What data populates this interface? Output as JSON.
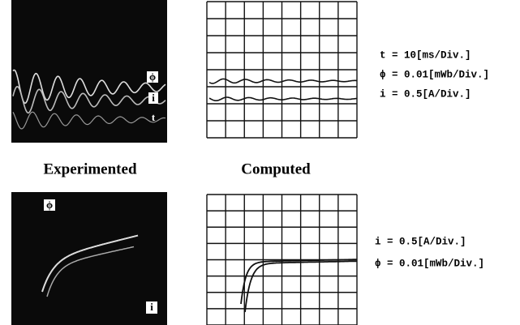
{
  "top_left": {
    "tags": [
      "ϕ",
      "i",
      "t"
    ]
  },
  "captions": {
    "experimented": "Experimented",
    "computed": "Computed"
  },
  "top_scales": [
    "t = 10[ms/Div.]",
    "ϕ = 0.01[mWb/Div.]",
    "i = 0.5[A/Div.]"
  ],
  "bottom_left": {
    "tags": [
      "ϕ",
      "i"
    ]
  },
  "bottom_scales": [
    "i = 0.5[A/Div.]",
    "ϕ = 0.01[mWb/Div.]"
  ]
}
